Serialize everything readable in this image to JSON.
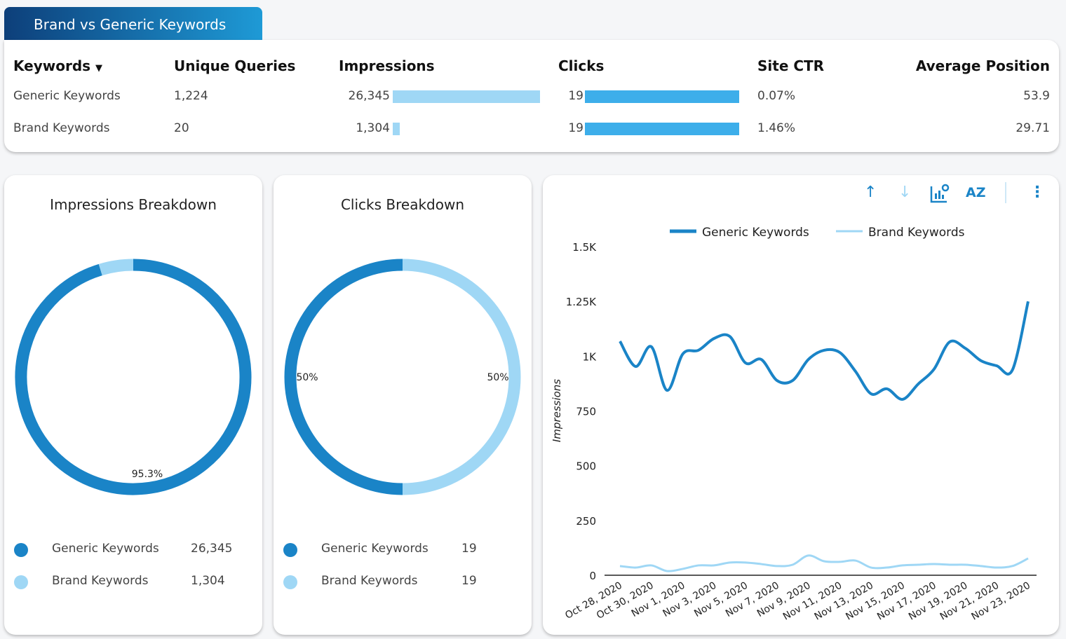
{
  "tab": {
    "title": "Brand vs Generic Keywords"
  },
  "table": {
    "headers": [
      "Keywords",
      "Unique Queries",
      "Impressions",
      "Clicks",
      "Site CTR",
      "Average Position"
    ],
    "rows": [
      {
        "keyword": "Generic Keywords",
        "unique_queries": "1,224",
        "impressions": "26,345",
        "impressions_value": 26345,
        "clicks": "19",
        "clicks_value": 19,
        "ctr": "0.07%",
        "avg_position": "53.9"
      },
      {
        "keyword": "Brand Keywords",
        "unique_queries": "20",
        "impressions": "1,304",
        "impressions_value": 1304,
        "clicks": "19",
        "clicks_value": 19,
        "ctr": "1.46%",
        "avg_position": "29.71"
      }
    ]
  },
  "colors": {
    "generic": "#1a84c7",
    "brand": "#9fd7f5",
    "bar_impressions": "#9fd7f5",
    "bar_clicks": "#3daeea"
  },
  "chart_data": [
    {
      "type": "pie",
      "title": "Impressions Breakdown",
      "categories": [
        "Generic Keywords",
        "Brand Keywords"
      ],
      "values": [
        26345,
        1304
      ],
      "value_labels": [
        "26,345",
        "1,304"
      ],
      "slice_labels": [
        "95.3%",
        ""
      ]
    },
    {
      "type": "pie",
      "title": "Clicks Breakdown",
      "categories": [
        "Generic Keywords",
        "Brand Keywords"
      ],
      "values": [
        19,
        19
      ],
      "value_labels": [
        "19",
        "19"
      ],
      "slice_labels": [
        "50%",
        "50%"
      ]
    },
    {
      "type": "line",
      "title": "",
      "xlabel": "",
      "ylabel": "Impressions",
      "ylim": [
        0,
        1500
      ],
      "yticks": [
        0,
        250,
        500,
        750,
        1000,
        1250,
        1500
      ],
      "ytick_labels": [
        "0",
        "250",
        "500",
        "750",
        "1K",
        "1.25K",
        "1.5K"
      ],
      "legend": "top",
      "xtick_labels": [
        "Oct 28, 2020",
        "Oct 30, 2020",
        "Nov 1, 2020",
        "Nov 3, 2020",
        "Nov 5, 2020",
        "Nov 7, 2020",
        "Nov 9, 2020",
        "Nov 11, 2020",
        "Nov 13, 2020",
        "Nov 15, 2020",
        "Nov 17, 2020",
        "Nov 19, 2020",
        "Nov 21, 2020",
        "Nov 23, 2020"
      ],
      "x_start": "Oct 28, 2020",
      "x_end": "Nov 23, 2020",
      "series": [
        {
          "name": "Generic Keywords",
          "values": [
            1068,
            953,
            1043,
            844,
            1010,
            1027,
            1081,
            1090,
            969,
            985,
            889,
            889,
            985,
            1027,
            1017,
            931,
            828,
            851,
            803,
            873,
            940,
            1065,
            1036,
            979,
            956,
            937,
            1250
          ]
        },
        {
          "name": "Brand Keywords",
          "values": [
            42,
            35,
            45,
            19,
            29,
            45,
            45,
            58,
            58,
            51,
            42,
            48,
            90,
            64,
            61,
            67,
            35,
            35,
            45,
            48,
            51,
            48,
            48,
            42,
            35,
            42,
            77
          ]
        }
      ]
    }
  ],
  "toolbar": {
    "icons": [
      "arrow-up-icon",
      "arrow-down-icon",
      "chart-settings-icon",
      "sort-az-icon",
      "more-vert-icon"
    ]
  }
}
